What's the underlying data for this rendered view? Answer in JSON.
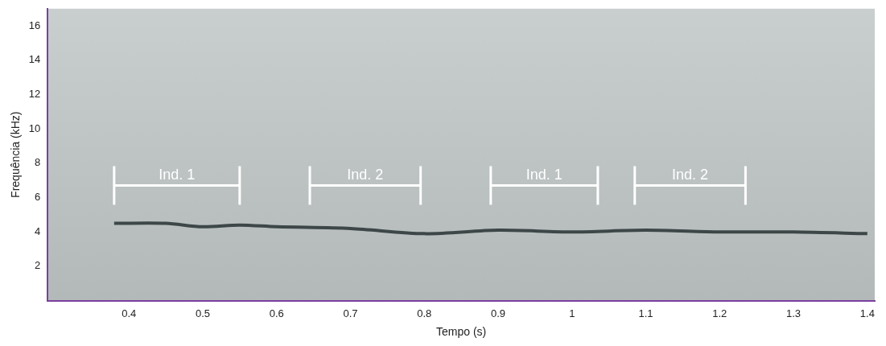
{
  "chart_data": {
    "type": "line",
    "x_label": "Tempo (s)",
    "y_label": "Frequência (kHz)",
    "xlim": [
      0.29,
      1.41
    ],
    "xticks": [
      0.4,
      0.5,
      0.6,
      0.7,
      0.8,
      0.9,
      1,
      1.1,
      1.2,
      1.3,
      1.4
    ],
    "ylim": [
      0,
      17
    ],
    "yticks": [
      2,
      4,
      6,
      8,
      10,
      12,
      14,
      16
    ],
    "grid": false,
    "series": [
      {
        "color": "#3d4747",
        "line_style": "solid",
        "x": [
          0.38,
          0.45,
          0.5,
          0.55,
          0.6,
          0.7,
          0.8,
          0.9,
          1.0,
          1.1,
          1.2,
          1.3,
          1.4
        ],
        "values": [
          4.5,
          4.5,
          4.3,
          4.4,
          4.3,
          4.2,
          3.9,
          4.1,
          4.0,
          4.1,
          4.0,
          4.0,
          3.9
        ]
      }
    ],
    "annotations": [
      {
        "label": "Ind. 1",
        "start": 0.38,
        "end": 0.55,
        "y": 6.7
      },
      {
        "label": "Ind. 2",
        "start": 0.645,
        "end": 0.795,
        "y": 6.7
      },
      {
        "label": "Ind. 1",
        "start": 0.89,
        "end": 1.035,
        "y": 6.7
      },
      {
        "label": "Ind. 2",
        "start": 1.085,
        "end": 1.235,
        "y": 6.7
      }
    ]
  }
}
